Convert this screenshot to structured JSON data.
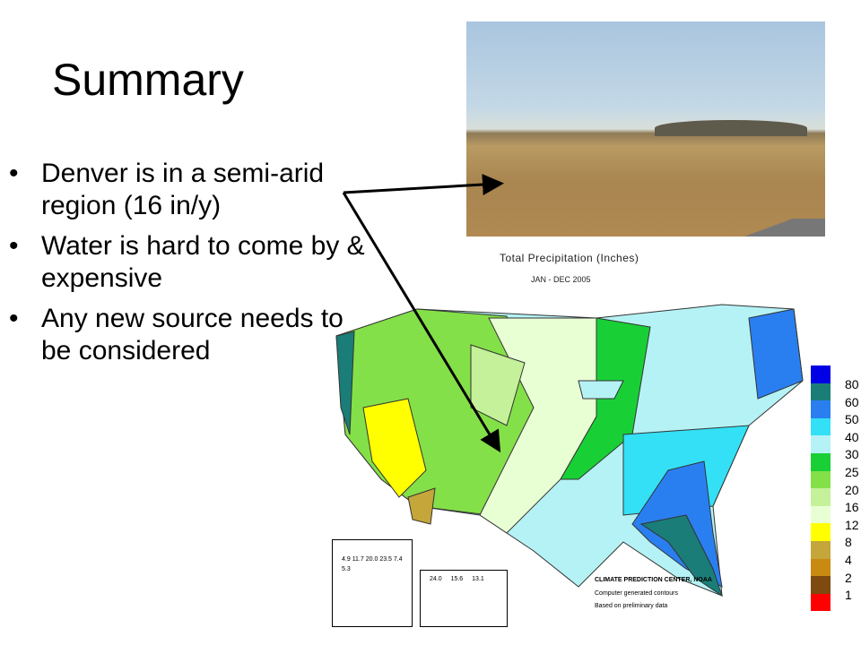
{
  "slide": {
    "title": "Summary",
    "bullets": [
      {
        "text": "Denver is in a semi-arid region (16 in/y)"
      },
      {
        "text": "Water is hard to come by & expensive"
      },
      {
        "text": "Any new source needs to be considered"
      }
    ],
    "bullet_glyph": "•"
  },
  "map": {
    "title": "Total Precipitation (Inches)",
    "subtitle": "JAN - DEC 2005",
    "credit": [
      "CLIMATE PREDICTION CENTER, NOAA",
      "Computer generated contours",
      "Based on preliminary data"
    ],
    "legend": {
      "labels": [
        "80",
        "60",
        "50",
        "40",
        "30",
        "25",
        "20",
        "16",
        "12",
        "8",
        "4",
        "2",
        "1"
      ],
      "colors": [
        "#0000e6",
        "#1a7d78",
        "#2a7ff0",
        "#33e0f5",
        "#b5f2f5",
        "#18d035",
        "#84e048",
        "#c4f19a",
        "#e8ffd4",
        "#ffff00",
        "#c4a63a",
        "#c88a10",
        "#7f4a10",
        "#ff0000"
      ]
    },
    "alaska_labels": [
      "4.9",
      "11.7",
      "20.0",
      "23.5",
      "7.4",
      "5.3"
    ],
    "hawaii_labels": [
      "24.0",
      "15.6",
      "13.1"
    ]
  }
}
